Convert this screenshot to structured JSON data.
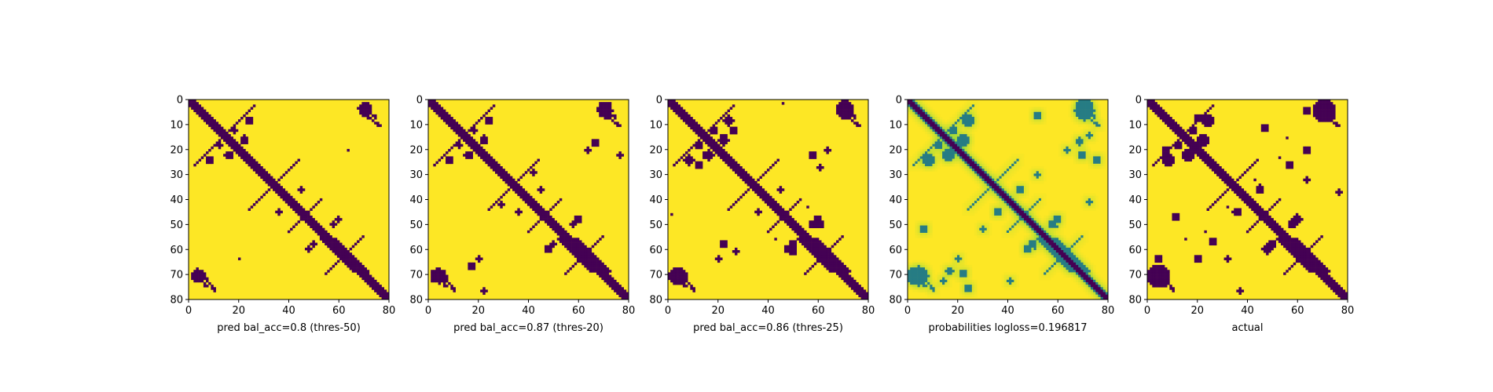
{
  "figure": {
    "colors": {
      "yellow": "#fde725",
      "purple": "#440154",
      "teal": "#21918c",
      "lightgreen": "#a0da39"
    }
  },
  "chart_data": [
    {
      "type": "heatmap",
      "xlabel": "pred bal_acc=0.8 (thres-50)",
      "xticks": [
        0,
        20,
        40,
        60,
        80
      ],
      "yticks": [
        0,
        10,
        20,
        30,
        40,
        50,
        60,
        70,
        80
      ],
      "xlim": [
        0,
        80
      ],
      "ylim": [
        80,
        0
      ],
      "grid_size": 81,
      "value_range": [
        0,
        1
      ],
      "cells": "binary contact-prediction map: diagonal band of 0 values with off-diagonal blobs (near (8,25),(22,15),(62,40),(45,50),(64,20),(70,5),(4,70)); remaining cells 1"
    },
    {
      "type": "heatmap",
      "xlabel": "pred bal_acc=0.87 (thres-20)",
      "xticks": [
        0,
        20,
        40,
        60,
        80
      ],
      "yticks": [
        0,
        10,
        20,
        30,
        40,
        50,
        60,
        70,
        80
      ],
      "xlim": [
        0,
        80
      ],
      "ylim": [
        80,
        0
      ],
      "grid_size": 81,
      "value_range": [
        0,
        1
      ]
    },
    {
      "type": "heatmap",
      "xlabel": "pred bal_acc=0.86 (thres-25)",
      "xticks": [
        0,
        20,
        40,
        60,
        80
      ],
      "yticks": [
        0,
        10,
        20,
        30,
        40,
        50,
        60,
        70,
        80
      ],
      "xlim": [
        0,
        80
      ],
      "ylim": [
        80,
        0
      ],
      "grid_size": 81,
      "value_range": [
        0,
        1
      ]
    },
    {
      "type": "heatmap",
      "xlabel": "probabilities logloss=0.196817",
      "xticks": [
        0,
        20,
        40,
        60,
        80
      ],
      "yticks": [
        0,
        10,
        20,
        30,
        40,
        50,
        60,
        70,
        80
      ],
      "xlim": [
        0,
        80
      ],
      "ylim": [
        80,
        0
      ],
      "grid_size": 81,
      "value_range": [
        0,
        1
      ],
      "continuous": true
    },
    {
      "type": "heatmap",
      "xlabel": "actual",
      "xticks": [
        0,
        20,
        40,
        60,
        80
      ],
      "yticks": [
        0,
        10,
        20,
        30,
        40,
        50,
        60,
        70,
        80
      ],
      "xlim": [
        0,
        80
      ],
      "ylim": [
        80,
        0
      ],
      "grid_size": 81,
      "value_range": [
        0,
        1
      ]
    }
  ]
}
